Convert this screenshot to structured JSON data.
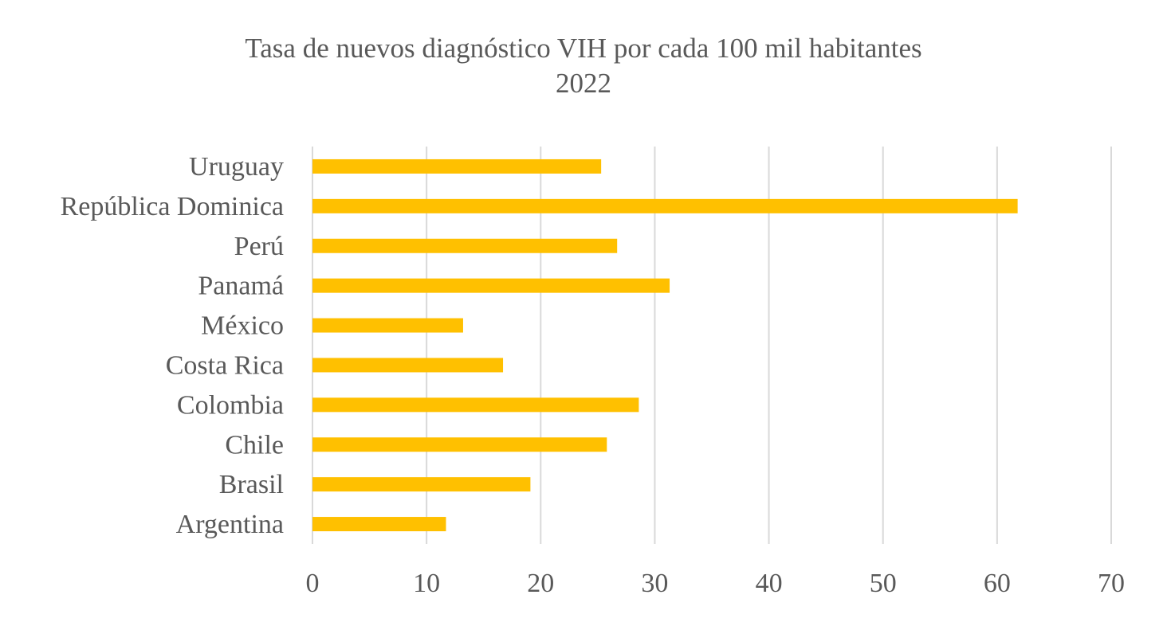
{
  "chart_data": {
    "type": "bar",
    "orientation": "horizontal",
    "title": "Tasa de nuevos diagnóstico VIH por cada 100 mil habitantes",
    "subtitle": "2022",
    "categories": [
      "Uruguay",
      "República Dominica",
      "Perú",
      "Panamá",
      "México",
      "Costa Rica",
      "Colombia",
      "Chile",
      "Brasil",
      "Argentina"
    ],
    "values": [
      25.3,
      61.8,
      26.7,
      31.3,
      13.2,
      16.7,
      28.6,
      25.8,
      19.1,
      11.7
    ],
    "xlim": [
      0,
      70
    ],
    "xticks": [
      0,
      10,
      20,
      30,
      40,
      50,
      60,
      70
    ],
    "grid": true,
    "legend": "none",
    "bar_color": "#FFC000"
  }
}
